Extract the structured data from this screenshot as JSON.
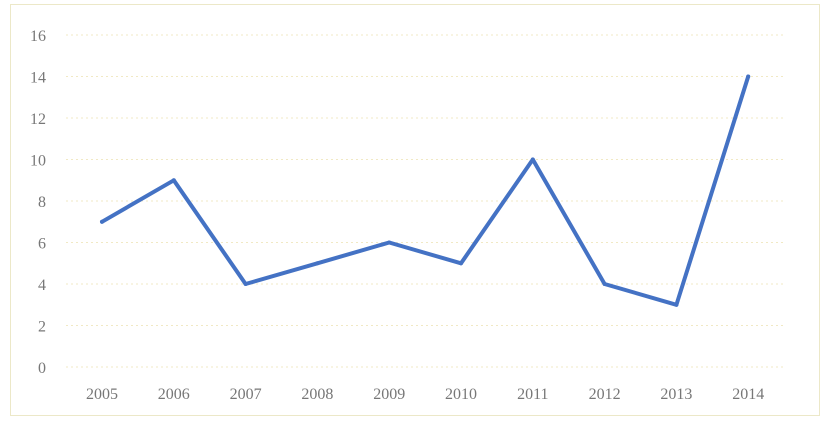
{
  "chart_data": {
    "type": "line",
    "title": "",
    "xlabel": "",
    "ylabel": "",
    "categories": [
      "2005",
      "2006",
      "2007",
      "2008",
      "2009",
      "2010",
      "2011",
      "2012",
      "2013",
      "2014"
    ],
    "series": [
      {
        "values": [
          7,
          9,
          4,
          5,
          6,
          5,
          10,
          4,
          3,
          14
        ]
      }
    ],
    "ylim": [
      0,
      16
    ],
    "yticks": [
      "0",
      "2",
      "4",
      "6",
      "8",
      "10",
      "12",
      "14",
      "16"
    ],
    "grid": true,
    "colors": {
      "line": "#4472c4",
      "grid": "#f1e9c4",
      "text": "#777777"
    }
  }
}
